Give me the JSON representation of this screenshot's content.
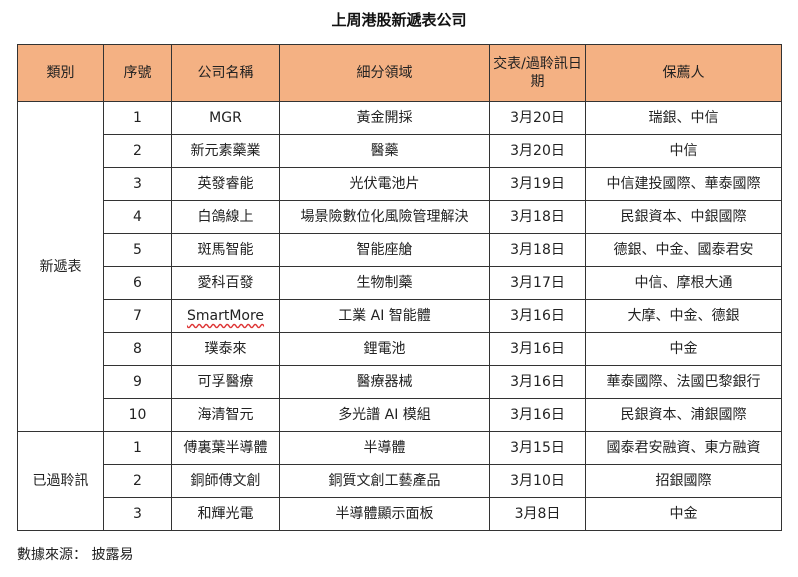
{
  "title": "上周港股新遞表公司",
  "headers": [
    "類別",
    "序號",
    "公司名稱",
    "細分領域",
    "交表/過聆訊日期",
    "保薦人"
  ],
  "groups": [
    {
      "category": "新遞表",
      "rows": [
        {
          "no": "1",
          "company": "MGR",
          "sector": "黃金開採",
          "date": "3月20日",
          "sponsor": "瑞銀、中信"
        },
        {
          "no": "2",
          "company": "新元素藥業",
          "sector": "醫藥",
          "date": "3月20日",
          "sponsor": "中信"
        },
        {
          "no": "3",
          "company": "英發睿能",
          "sector": "光伏電池片",
          "date": "3月19日",
          "sponsor": "中信建投國際、華泰國際"
        },
        {
          "no": "4",
          "company": "白鴿線上",
          "sector": "場景險數位化風險管理解決",
          "date": "3月18日",
          "sponsor": "民銀資本、中銀國際"
        },
        {
          "no": "5",
          "company": "斑馬智能",
          "sector": "智能座艙",
          "date": "3月18日",
          "sponsor": "德銀、中金、國泰君安"
        },
        {
          "no": "6",
          "company": "愛科百發",
          "sector": "生物制藥",
          "date": "3月17日",
          "sponsor": "中信、摩根大通"
        },
        {
          "no": "7",
          "company": "SmartMore",
          "sector": "工業 AI 智能體",
          "date": "3月16日",
          "sponsor": "大摩、中金、德銀"
        },
        {
          "no": "8",
          "company": "璞泰來",
          "sector": "鋰電池",
          "date": "3月16日",
          "sponsor": "中金"
        },
        {
          "no": "9",
          "company": "可孚醫療",
          "sector": "醫療器械",
          "date": "3月16日",
          "sponsor": "華泰國際、法國巴黎銀行"
        },
        {
          "no": "10",
          "company": "海清智元",
          "sector": "多光譜 AI 模組",
          "date": "3月16日",
          "sponsor": "民銀資本、浦銀國際"
        }
      ]
    },
    {
      "category": "已過聆訊",
      "rows": [
        {
          "no": "1",
          "company": "傅裏葉半導體",
          "sector": "半導體",
          "date": "3月15日",
          "sponsor": "國泰君安融資、東方融資"
        },
        {
          "no": "2",
          "company": "銅師傅文創",
          "sector": "銅質文創工藝產品",
          "date": "3月10日",
          "sponsor": "招銀國際"
        },
        {
          "no": "3",
          "company": "和輝光電",
          "sector": "半導體顯示面板",
          "date": "3月8日",
          "sponsor": "中金"
        }
      ]
    }
  ],
  "source": "數據來源： 披露易"
}
